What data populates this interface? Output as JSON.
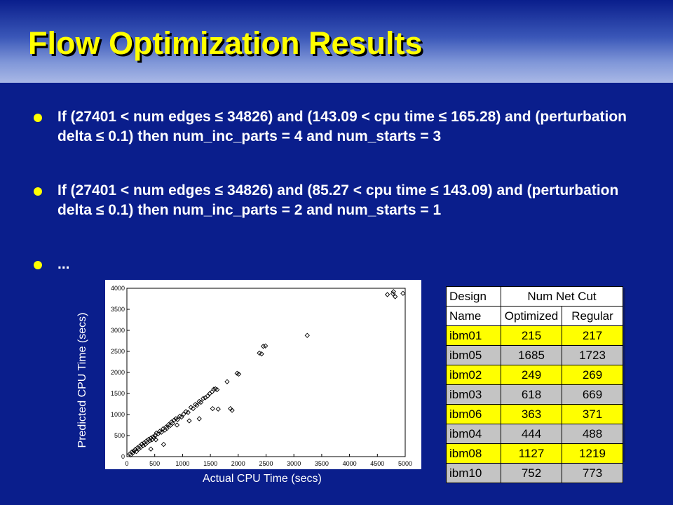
{
  "slide": {
    "title": "Flow Optimization Results"
  },
  "bullets": [
    "If (27401 < num edges ≤ 34826) and (143.09 < cpu time ≤ 165.28) and (perturbation delta ≤ 0.1) then num_inc_parts = 4 and num_starts = 3",
    "If (27401 < num edges ≤ 34826) and (85.27 < cpu time ≤ 143.09) and (perturbation delta ≤ 0.1) then num_inc_parts = 2 and num_starts = 1",
    "..."
  ],
  "colors": {
    "background": "#0a1e8c",
    "title": "#ffff00",
    "bullet_dot": "#ffff00",
    "row_yellow": "#ffff00",
    "row_gray": "#c4c4c4"
  },
  "chart_data": {
    "type": "scatter",
    "xlabel": "Actual CPU Time (secs)",
    "ylabel": "Predicted CPU Time (secs)",
    "xlim": [
      0,
      5000
    ],
    "ylim": [
      0,
      4000
    ],
    "xticks": [
      0,
      500,
      1000,
      1500,
      2000,
      2500,
      3000,
      3500,
      4000,
      4500,
      5000
    ],
    "yticks": [
      0,
      500,
      1000,
      1500,
      2000,
      2500,
      3000,
      3500,
      4000
    ],
    "grid": false,
    "points": [
      [
        50,
        60
      ],
      [
        70,
        40
      ],
      [
        90,
        110
      ],
      [
        110,
        90
      ],
      [
        130,
        140
      ],
      [
        150,
        170
      ],
      [
        170,
        120
      ],
      [
        190,
        210
      ],
      [
        210,
        180
      ],
      [
        230,
        250
      ],
      [
        250,
        220
      ],
      [
        270,
        300
      ],
      [
        290,
        260
      ],
      [
        310,
        330
      ],
      [
        330,
        290
      ],
      [
        350,
        370
      ],
      [
        370,
        340
      ],
      [
        390,
        410
      ],
      [
        410,
        380
      ],
      [
        430,
        440
      ],
      [
        450,
        400
      ],
      [
        470,
        470
      ],
      [
        490,
        450
      ],
      [
        510,
        500
      ],
      [
        530,
        560
      ],
      [
        560,
        540
      ],
      [
        590,
        600
      ],
      [
        620,
        580
      ],
      [
        650,
        660
      ],
      [
        680,
        630
      ],
      [
        700,
        700
      ],
      [
        720,
        670
      ],
      [
        750,
        760
      ],
      [
        780,
        740
      ],
      [
        800,
        820
      ],
      [
        820,
        790
      ],
      [
        850,
        870
      ],
      [
        880,
        900
      ],
      [
        910,
        880
      ],
      [
        950,
        960
      ],
      [
        980,
        940
      ],
      [
        1020,
        1010
      ],
      [
        1060,
        1070
      ],
      [
        1100,
        1050
      ],
      [
        1150,
        1170
      ],
      [
        1190,
        1140
      ],
      [
        1230,
        1240
      ],
      [
        1260,
        1220
      ],
      [
        1300,
        1310
      ],
      [
        1330,
        1290
      ],
      [
        1370,
        1380
      ],
      [
        1410,
        1400
      ],
      [
        1450,
        1440
      ],
      [
        1490,
        1500
      ],
      [
        1530,
        1540
      ],
      [
        1560,
        1600
      ],
      [
        1590,
        1610
      ],
      [
        1620,
        1590
      ],
      [
        1640,
        1130
      ],
      [
        1540,
        1140
      ],
      [
        1860,
        1140
      ],
      [
        1890,
        1100
      ],
      [
        1300,
        900
      ],
      [
        1120,
        850
      ],
      [
        900,
        750
      ],
      [
        660,
        290
      ],
      [
        520,
        400
      ],
      [
        430,
        180
      ],
      [
        1800,
        1780
      ],
      [
        1980,
        1980
      ],
      [
        2010,
        1960
      ],
      [
        2380,
        2460
      ],
      [
        2420,
        2440
      ],
      [
        2450,
        2620
      ],
      [
        2490,
        2630
      ],
      [
        3240,
        2880
      ],
      [
        4680,
        3850
      ],
      [
        4780,
        3870
      ],
      [
        4820,
        3800
      ],
      [
        4960,
        3880
      ],
      [
        4790,
        3920
      ]
    ]
  },
  "table": {
    "header1": [
      "Design",
      "Num Net Cut"
    ],
    "header2": [
      "Name",
      "Optimized",
      "Regular"
    ],
    "rows": [
      [
        "ibm01",
        "215",
        "217"
      ],
      [
        "ibm05",
        "1685",
        "1723"
      ],
      [
        "ibm02",
        "249",
        "269"
      ],
      [
        "ibm03",
        "618",
        "669"
      ],
      [
        "ibm06",
        "363",
        "371"
      ],
      [
        "ibm04",
        "444",
        "488"
      ],
      [
        "ibm08",
        "1127",
        "1219"
      ],
      [
        "ibm10",
        "752",
        "773"
      ]
    ]
  }
}
